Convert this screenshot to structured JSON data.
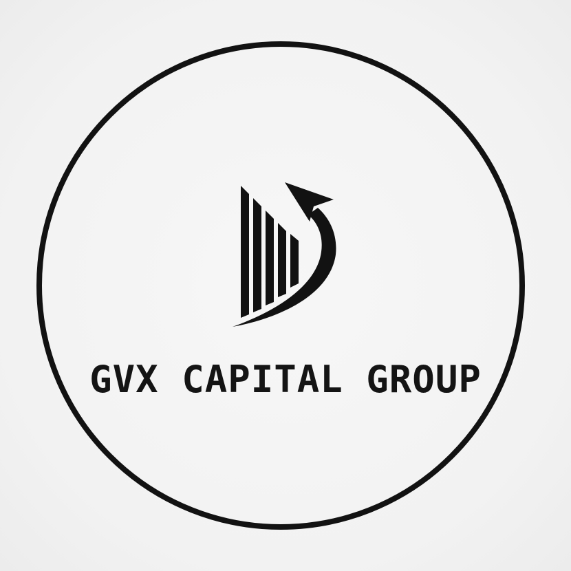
{
  "logo": {
    "brand_name": "GVX CAPITAL GROUP",
    "mark_icon": "rising-bars-with-arrow-icon",
    "colors": {
      "ink": "#121212",
      "background": "#f3f3f3"
    }
  }
}
